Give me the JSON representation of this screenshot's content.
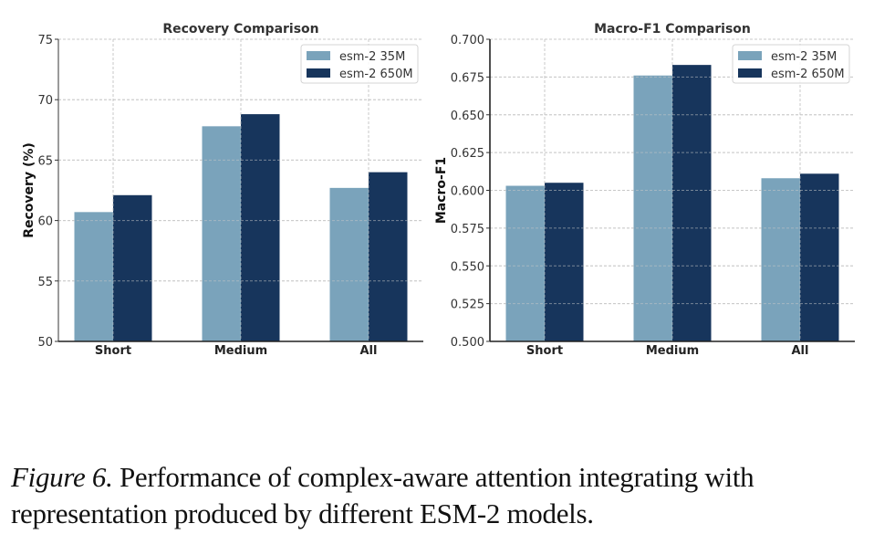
{
  "chart_data": [
    {
      "type": "bar",
      "title": "Recovery Comparison",
      "xlabel": "",
      "ylabel": "Recovery (%)",
      "categories": [
        "Short",
        "Medium",
        "All"
      ],
      "series": [
        {
          "name": "esm-2 35M",
          "color": "#7aa3bb",
          "values": [
            60.7,
            67.8,
            62.7
          ]
        },
        {
          "name": "esm-2 650M",
          "color": "#17355c",
          "values": [
            62.1,
            68.8,
            64.0
          ]
        }
      ],
      "ylim": [
        50,
        75
      ],
      "yticks": [
        50,
        55,
        60,
        65,
        70,
        75
      ],
      "ytick_labels": [
        "50",
        "55",
        "60",
        "65",
        "70",
        "75"
      ],
      "grid": true,
      "legend": "top-right"
    },
    {
      "type": "bar",
      "title": "Macro-F1 Comparison",
      "xlabel": "",
      "ylabel": "Macro-F1",
      "categories": [
        "Short",
        "Medium",
        "All"
      ],
      "series": [
        {
          "name": "esm-2 35M",
          "color": "#7aa3bb",
          "values": [
            0.603,
            0.676,
            0.608
          ]
        },
        {
          "name": "esm-2 650M",
          "color": "#17355c",
          "values": [
            0.605,
            0.683,
            0.611
          ]
        }
      ],
      "ylim": [
        0.5,
        0.7
      ],
      "yticks": [
        0.5,
        0.525,
        0.55,
        0.575,
        0.6,
        0.625,
        0.65,
        0.675,
        0.7
      ],
      "ytick_labels": [
        "0.500",
        "0.525",
        "0.550",
        "0.575",
        "0.600",
        "0.625",
        "0.650",
        "0.675",
        "0.700"
      ],
      "grid": true,
      "legend": "top-right"
    }
  ],
  "caption": {
    "label": "Figure 6.",
    "text": " Performance of complex-aware attention integrating with representation produced by different ESM-2 models."
  }
}
